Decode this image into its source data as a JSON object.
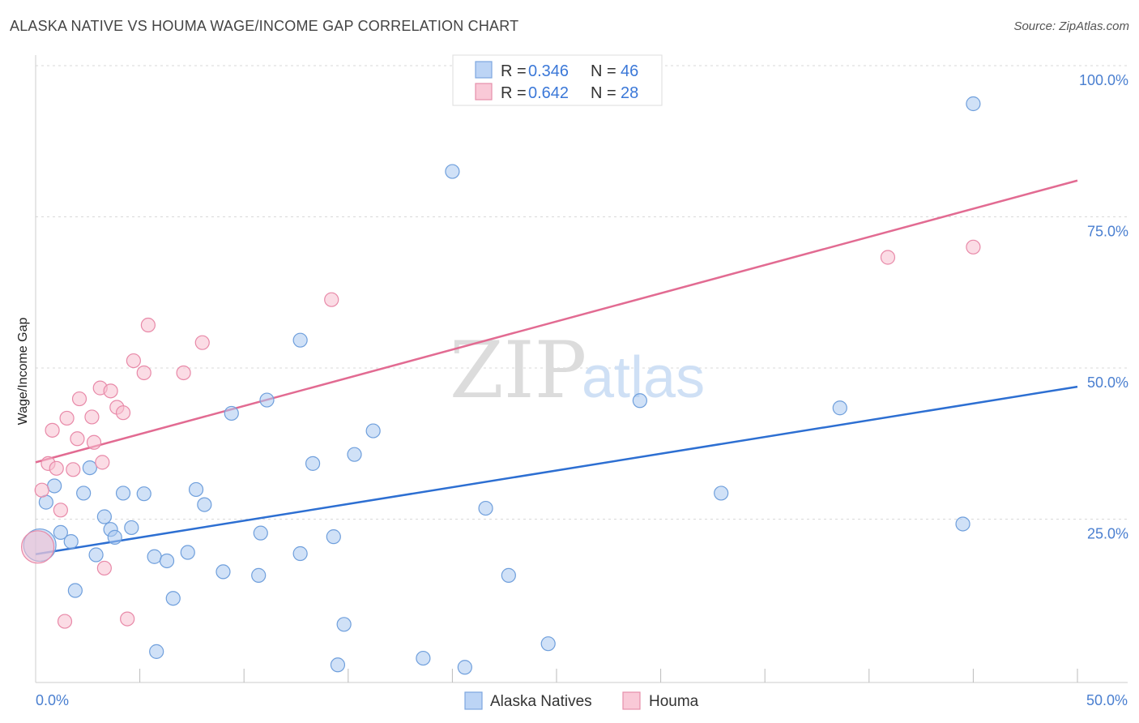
{
  "chart_data": {
    "type": "scatter",
    "title": "ALASKA NATIVE VS HOUMA WAGE/INCOME GAP CORRELATION CHART",
    "source": "Source: ZipAtlas.com",
    "xlabel": "",
    "ylabel": "Wage/Income Gap",
    "xlim": [
      0,
      0.5
    ],
    "ylim": [
      0,
      1.0
    ],
    "x_tick_labels": [
      "0.0%",
      "50.0%"
    ],
    "y_ticks": [
      {
        "value": 0.25,
        "label": "25.0%"
      },
      {
        "value": 0.5,
        "label": "50.0%"
      },
      {
        "value": 0.75,
        "label": "75.0%"
      },
      {
        "value": 1.0,
        "label": "100.0%"
      }
    ],
    "watermark": {
      "part1": "ZIP",
      "part2": "atlas"
    },
    "legend": {
      "r_label": "R =",
      "n_label": "N =",
      "entries": [
        {
          "r": "0.346",
          "n": "46"
        },
        {
          "r": "0.642",
          "n": "28"
        }
      ]
    },
    "series": [
      {
        "name": "Alaska Natives",
        "color": "#a9c8f0",
        "stroke": "#6f9fdc",
        "line_color": "#2d6fd2",
        "trend": {
          "x0": 0.0,
          "y0": 0.192,
          "x1": 0.5,
          "y1": 0.469
        },
        "points": [
          {
            "x": 0.002,
            "y": 0.207,
            "big": true
          },
          {
            "x": 0.005,
            "y": 0.278
          },
          {
            "x": 0.009,
            "y": 0.305
          },
          {
            "x": 0.012,
            "y": 0.228
          },
          {
            "x": 0.017,
            "y": 0.213
          },
          {
            "x": 0.019,
            "y": 0.132
          },
          {
            "x": 0.023,
            "y": 0.293
          },
          {
            "x": 0.026,
            "y": 0.335
          },
          {
            "x": 0.029,
            "y": 0.191
          },
          {
            "x": 0.033,
            "y": 0.254
          },
          {
            "x": 0.036,
            "y": 0.233
          },
          {
            "x": 0.038,
            "y": 0.22
          },
          {
            "x": 0.042,
            "y": 0.293
          },
          {
            "x": 0.046,
            "y": 0.236
          },
          {
            "x": 0.052,
            "y": 0.292
          },
          {
            "x": 0.057,
            "y": 0.188
          },
          {
            "x": 0.058,
            "y": 0.031
          },
          {
            "x": 0.063,
            "y": 0.181
          },
          {
            "x": 0.066,
            "y": 0.119
          },
          {
            "x": 0.073,
            "y": 0.195
          },
          {
            "x": 0.077,
            "y": 0.299
          },
          {
            "x": 0.081,
            "y": 0.274
          },
          {
            "x": 0.09,
            "y": 0.163
          },
          {
            "x": 0.094,
            "y": 0.425
          },
          {
            "x": 0.107,
            "y": 0.157
          },
          {
            "x": 0.108,
            "y": 0.227
          },
          {
            "x": 0.111,
            "y": 0.447
          },
          {
            "x": 0.127,
            "y": 0.546
          },
          {
            "x": 0.127,
            "y": 0.193
          },
          {
            "x": 0.133,
            "y": 0.342
          },
          {
            "x": 0.143,
            "y": 0.221
          },
          {
            "x": 0.145,
            "y": 0.009
          },
          {
            "x": 0.148,
            "y": 0.076
          },
          {
            "x": 0.153,
            "y": 0.357
          },
          {
            "x": 0.162,
            "y": 0.396
          },
          {
            "x": 0.186,
            "y": 0.02
          },
          {
            "x": 0.2,
            "y": 0.825
          },
          {
            "x": 0.206,
            "y": 0.005
          },
          {
            "x": 0.216,
            "y": 0.268
          },
          {
            "x": 0.227,
            "y": 0.157
          },
          {
            "x": 0.246,
            "y": 0.044
          },
          {
            "x": 0.29,
            "y": 0.446
          },
          {
            "x": 0.329,
            "y": 0.293
          },
          {
            "x": 0.386,
            "y": 0.434
          },
          {
            "x": 0.445,
            "y": 0.242
          },
          {
            "x": 0.45,
            "y": 0.937
          }
        ]
      },
      {
        "name": "Houma",
        "color": "#f7bfd0",
        "stroke": "#e889a8",
        "line_color": "#e26b92",
        "trend": {
          "x0": 0.0,
          "y0": 0.344,
          "x1": 0.5,
          "y1": 0.81
        },
        "points": [
          {
            "x": 0.001,
            "y": 0.204,
            "big": true
          },
          {
            "x": 0.003,
            "y": 0.298
          },
          {
            "x": 0.006,
            "y": 0.342
          },
          {
            "x": 0.008,
            "y": 0.397
          },
          {
            "x": 0.01,
            "y": 0.334
          },
          {
            "x": 0.012,
            "y": 0.265
          },
          {
            "x": 0.014,
            "y": 0.081
          },
          {
            "x": 0.015,
            "y": 0.417
          },
          {
            "x": 0.018,
            "y": 0.332
          },
          {
            "x": 0.02,
            "y": 0.383
          },
          {
            "x": 0.021,
            "y": 0.449
          },
          {
            "x": 0.027,
            "y": 0.419
          },
          {
            "x": 0.028,
            "y": 0.377
          },
          {
            "x": 0.031,
            "y": 0.467
          },
          {
            "x": 0.032,
            "y": 0.344
          },
          {
            "x": 0.033,
            "y": 0.169
          },
          {
            "x": 0.036,
            "y": 0.462
          },
          {
            "x": 0.039,
            "y": 0.435
          },
          {
            "x": 0.042,
            "y": 0.426
          },
          {
            "x": 0.044,
            "y": 0.085
          },
          {
            "x": 0.047,
            "y": 0.512
          },
          {
            "x": 0.052,
            "y": 0.492
          },
          {
            "x": 0.054,
            "y": 0.571
          },
          {
            "x": 0.071,
            "y": 0.492
          },
          {
            "x": 0.08,
            "y": 0.542
          },
          {
            "x": 0.142,
            "y": 0.613
          },
          {
            "x": 0.409,
            "y": 0.683
          },
          {
            "x": 0.45,
            "y": 0.7
          }
        ]
      }
    ]
  }
}
